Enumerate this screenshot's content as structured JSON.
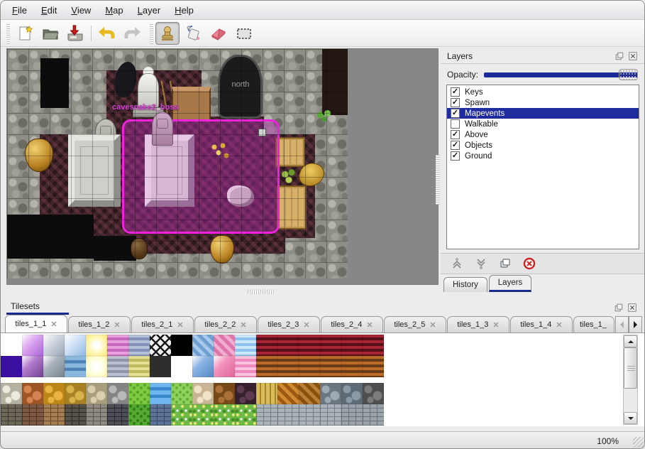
{
  "menu": {
    "items": [
      {
        "label": "File"
      },
      {
        "label": "Edit"
      },
      {
        "label": "View"
      },
      {
        "label": "Map"
      },
      {
        "label": "Layer"
      },
      {
        "label": "Help"
      }
    ]
  },
  "toolbar": {
    "icons": [
      "new-file",
      "open-folder",
      "save-drive",
      "undo-arrow",
      "redo-arrow",
      "stamp-tool",
      "fill-tool",
      "eraser-tool",
      "marquee-select-tool"
    ],
    "active_tool": "stamp-tool"
  },
  "map": {
    "labels": {
      "entrance": "north",
      "event": "cavesnake2_boss"
    },
    "selection_border_color": "#ee22dd",
    "selection_fill_color": "rgba(186,44,186,0.40)"
  },
  "layers_panel": {
    "title": "Layers",
    "opacity_label": "Opacity:",
    "opacity_percent": 100,
    "items": [
      {
        "label": "Keys",
        "checked": true,
        "glyph": "✓",
        "selected": false
      },
      {
        "label": "Spawn",
        "checked": true,
        "glyph": "✓",
        "selected": false
      },
      {
        "label": "Mapevents",
        "checked": true,
        "glyph": "✓",
        "selected": true
      },
      {
        "label": "Walkable",
        "checked": false,
        "glyph": "",
        "selected": false
      },
      {
        "label": "Above",
        "checked": true,
        "glyph": "✓",
        "selected": false
      },
      {
        "label": "Objects",
        "checked": true,
        "glyph": "✓",
        "selected": false
      },
      {
        "label": "Ground",
        "checked": true,
        "glyph": "✓",
        "selected": false
      }
    ],
    "buttons": [
      "raise-layer",
      "lower-layer",
      "duplicate-layer",
      "delete-layer"
    ],
    "tabs": [
      {
        "label": "History",
        "active": false
      },
      {
        "label": "Layers",
        "active": true
      }
    ]
  },
  "tilesets_panel": {
    "title": "Tilesets",
    "tabs": [
      "tiles_1_1",
      "tiles_1_2",
      "tiles_2_1",
      "tiles_2_2",
      "tiles_2_3",
      "tiles_2_4",
      "tiles_2_5",
      "tiles_1_3",
      "tiles_1_4",
      "tiles_1_"
    ],
    "active_tab": "tiles_1_1",
    "close_glyph": "✕"
  },
  "status": {
    "zoom": "100%"
  },
  "colors": {
    "accent_navy": "#1e2c9e",
    "tab_underline_navy": "#1a2a8c",
    "selection_magenta": "#ee22dd",
    "list_selected_bg": "#1e2c9e",
    "map_empty_gray": "#878787"
  },
  "tileset_grid": {
    "rows": [
      [
        [
          "empty"
        ],
        [
          "crystal",
          "#dfa9f2",
          "#a763d4"
        ],
        [
          "crystal",
          "#d3d9e2",
          "#97a3b4"
        ],
        [
          "crystal",
          "#d6e6f8",
          "#8fb6e4"
        ],
        [
          "glow",
          "#fff6b0",
          "#ffe878"
        ],
        [
          "hstripe",
          "#eaa0dc",
          "#c668ba"
        ],
        [
          "hstripe",
          "#b3bed8",
          "#8590b6"
        ],
        [
          "lattice",
          "#f4f4f4",
          "#181818"
        ],
        [
          "solid",
          "#000000"
        ],
        [
          "diag",
          "#a6c9ec",
          "#6f9fd2"
        ],
        [
          "diag",
          "#f2accf",
          "#df76ab"
        ],
        [
          "hstripe",
          "#cde7fa",
          "#8ec3ec"
        ],
        [
          "hstripe",
          "#a82434",
          "#55101a"
        ],
        [
          "hstripe",
          "#a82434",
          "#55101a"
        ],
        [
          "hstripe",
          "#a82434",
          "#55101a"
        ],
        [
          "hstripe",
          "#a82434",
          "#55101a"
        ],
        [
          "hstripe",
          "#a82434",
          "#55101a"
        ],
        [
          "hstripe",
          "#a82434",
          "#55101a"
        ]
      ],
      [
        [
          "solid",
          "#3b0fa2"
        ],
        [
          "crystal",
          "#b37bcb",
          "#6f4292"
        ],
        [
          "crystal",
          "#aab4be",
          "#76818c"
        ],
        [
          "water",
          "#8ab8dc",
          "#4f83b8"
        ],
        [
          "glow",
          "#ffffda",
          "#fff0a0"
        ],
        [
          "hstripe",
          "#bcc0d0",
          "#9096aa"
        ],
        [
          "hstripe",
          "#e2de94",
          "#bfb960"
        ],
        [
          "solid",
          "#2e2e2e"
        ],
        [
          "empty"
        ],
        [
          "crystal",
          "#8ab4e4",
          "#5586c2"
        ],
        [
          "crystal",
          "#f293bb",
          "#df6597"
        ],
        [
          "hstripe",
          "#f8c2de",
          "#ec89bf"
        ],
        [
          "hstripe",
          "#b96c2a",
          "#6b3a12"
        ],
        [
          "hstripe",
          "#b96c2a",
          "#6b3a12"
        ],
        [
          "hstripe",
          "#b96c2a",
          "#6b3a12"
        ],
        [
          "hstripe",
          "#b96c2a",
          "#6b3a12"
        ],
        [
          "hstripe",
          "#b96c2a",
          "#6b3a12"
        ],
        [
          "hstripe",
          "#b96c2a",
          "#6b3a12"
        ]
      ],
      [
        [
          "cobble",
          "#ece9df",
          "#b5b1a0"
        ],
        [
          "cobble",
          "#d48450",
          "#9e5526"
        ],
        [
          "cobble",
          "#eab242",
          "#bd8618"
        ],
        [
          "cobble",
          "#d7b34c",
          "#a68224"
        ],
        [
          "cobble",
          "#d9cfb0",
          "#a89d7c"
        ],
        [
          "cobble",
          "#b9b9b9",
          "#848484"
        ],
        [
          "grass",
          "#7ecb42",
          "#55a228"
        ],
        [
          "water",
          "#6fb7ef",
          "#3a86ca"
        ],
        [
          "grass",
          "#8ed25c",
          "#63a834"
        ],
        [
          "cobble",
          "#f2e2ca",
          "#c9b593"
        ],
        [
          "cobble",
          "#aa7238",
          "#774818"
        ],
        [
          "cobble",
          "#5e3b4e",
          "#38212e"
        ],
        [
          "vstripe",
          "#dabb5a",
          "#a5842c"
        ],
        [
          "diag",
          "#d28a32",
          "#9c5a12"
        ],
        [
          "diag",
          "#ba7e36",
          "#86520e"
        ],
        [
          "cobble",
          "#9ea9b1",
          "#6b7680"
        ],
        [
          "cobble",
          "#8c9aa6",
          "#5d6b77"
        ],
        [
          "cobble",
          "#7b7b7b",
          "#4e4e4e"
        ]
      ],
      [
        [
          "brick",
          "#6c6759",
          "#3d3a30"
        ],
        [
          "brick",
          "#7e5a46",
          "#4e3222"
        ],
        [
          "brick",
          "#a37e52",
          "#684826"
        ],
        [
          "brick",
          "#57534b",
          "#2c2a22"
        ],
        [
          "brick",
          "#8e8a82",
          "#58544c"
        ],
        [
          "brick",
          "#4e4e57",
          "#26262c"
        ],
        [
          "grass",
          "#55aa33",
          "#2f7c14"
        ],
        [
          "brick",
          "#5e7294",
          "#334866"
        ],
        [
          "flower",
          "#6eba46",
          "#478f26"
        ],
        [
          "flower",
          "#6eba46",
          "#478f26"
        ],
        [
          "flower",
          "#6eba46",
          "#478f26"
        ],
        [
          "flower",
          "#6eba46",
          "#478f26"
        ],
        [
          "brick",
          "#aab2ba",
          "#747e88"
        ],
        [
          "brick",
          "#aab2ba",
          "#747e88"
        ],
        [
          "brick",
          "#aab2ba",
          "#747e88"
        ],
        [
          "brick",
          "#aab2ba",
          "#747e88"
        ],
        [
          "brick",
          "#9aa2aa",
          "#68727c"
        ],
        [
          "brick",
          "#9aa2aa",
          "#68727c"
        ]
      ]
    ]
  }
}
